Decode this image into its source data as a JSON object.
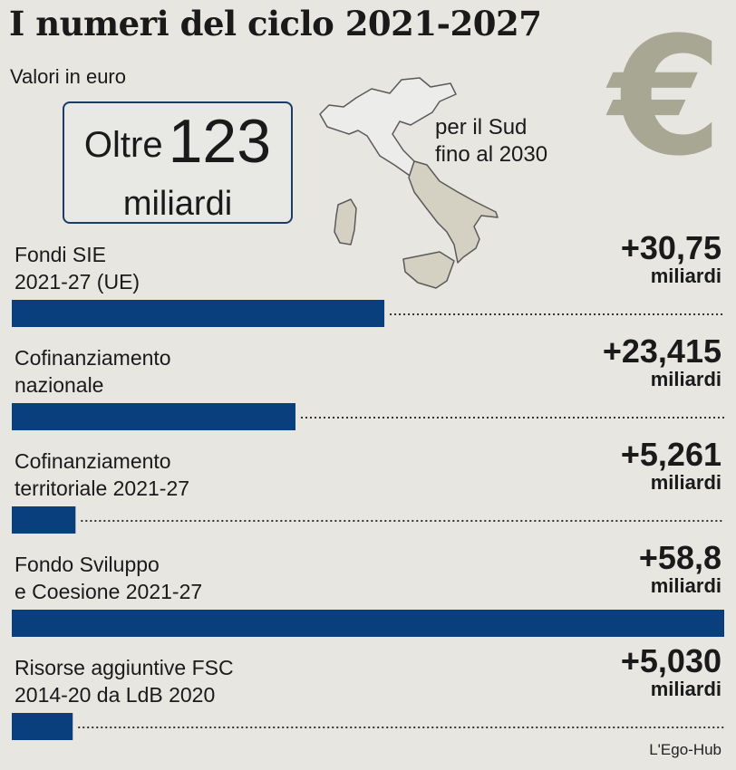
{
  "header": {
    "title": "I numeri del ciclo 2021-2027",
    "subtitle": "Valori in euro"
  },
  "total": {
    "prefix": "Oltre",
    "value": "123",
    "unit": "miliardi"
  },
  "map_note": {
    "line1": "per il Sud",
    "line2": "fino al 2030"
  },
  "euro_symbol": "€",
  "colors": {
    "bar": "#0a3f7e",
    "background": "#e7e6e1",
    "euro": "#a8a793",
    "map_highlight": "#d4d1c2"
  },
  "chart_data": {
    "type": "bar",
    "orientation": "horizontal",
    "unit": "miliardi",
    "categories": [
      [
        "Fondi SIE",
        "2021-27 (UE)"
      ],
      [
        "Cofinanziamento",
        "nazionale"
      ],
      [
        "Cofinanziamento",
        "territoriale 2021-27"
      ],
      [
        "Fondo Sviluppo",
        "e Coesione 2021-27"
      ],
      [
        "Risorse aggiuntive FSC",
        "2014-20 da LdB 2020"
      ]
    ],
    "values": [
      30.75,
      23.415,
      5.261,
      58.8,
      5.03
    ],
    "value_labels": [
      "+30,75",
      "+23,415",
      "+5,261",
      "+58,8",
      "+5,030"
    ],
    "grid": false,
    "legend": "none"
  },
  "credit": "L'Ego-Hub"
}
